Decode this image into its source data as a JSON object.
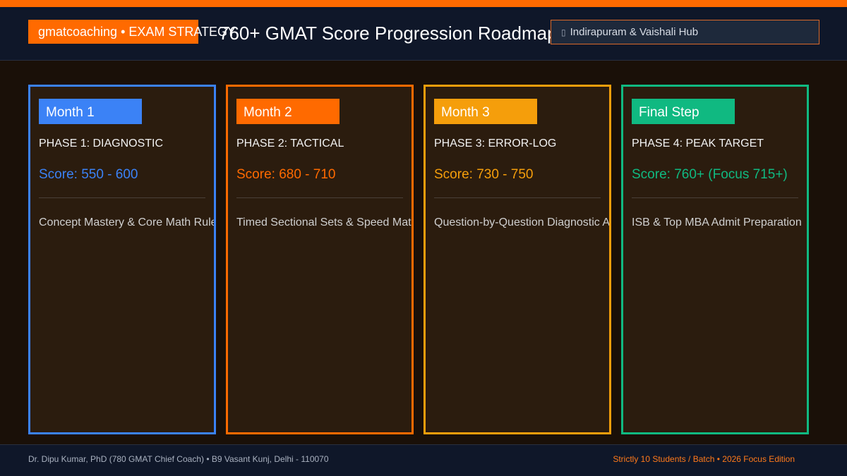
{
  "header": {
    "brand_badge": "gmatcoaching • EXAM STRATEGY",
    "title": "760+ GMAT Score Progression Roadmap",
    "location_icon": "map-pin-icon",
    "location": "Indirapuram & Vaishali Hub"
  },
  "phases": [
    {
      "tag": "Month 1",
      "phase": "PHASE 1: DIAGNOSTIC",
      "score": "Score: 550 - 600",
      "description": "Concept Mastery & Core Math Rules",
      "accent": "#3b82f6"
    },
    {
      "tag": "Month 2",
      "phase": "PHASE 2: TACTICAL",
      "score": "Score: 680 - 710",
      "description": "Timed Sectional Sets & Speed Math",
      "accent": "#ff6a00"
    },
    {
      "tag": "Month 3",
      "phase": "PHASE 3: ERROR-LOG",
      "score": "Score: 730 - 750",
      "description": "Question-by-Question Diagnostic Audit",
      "accent": "#f59e0b"
    },
    {
      "tag": "Final Step",
      "phase": "PHASE 4: PEAK TARGET",
      "score": "Score: 760+ (Focus 715+)",
      "description": "ISB & Top MBA Admit Preparation",
      "accent": "#10b981"
    }
  ],
  "footer": {
    "left": "Dr. Dipu Kumar, PhD (780 GMAT Chief Coach) • B9 Vasant Kunj, Delhi - 110070",
    "right": "Strictly 10 Students / Batch • 2026 Focus Edition"
  },
  "colors": {
    "accent_orange": "#ff6a00",
    "header_bg": "#0f1729",
    "card_bg": "#2b1c0e"
  }
}
